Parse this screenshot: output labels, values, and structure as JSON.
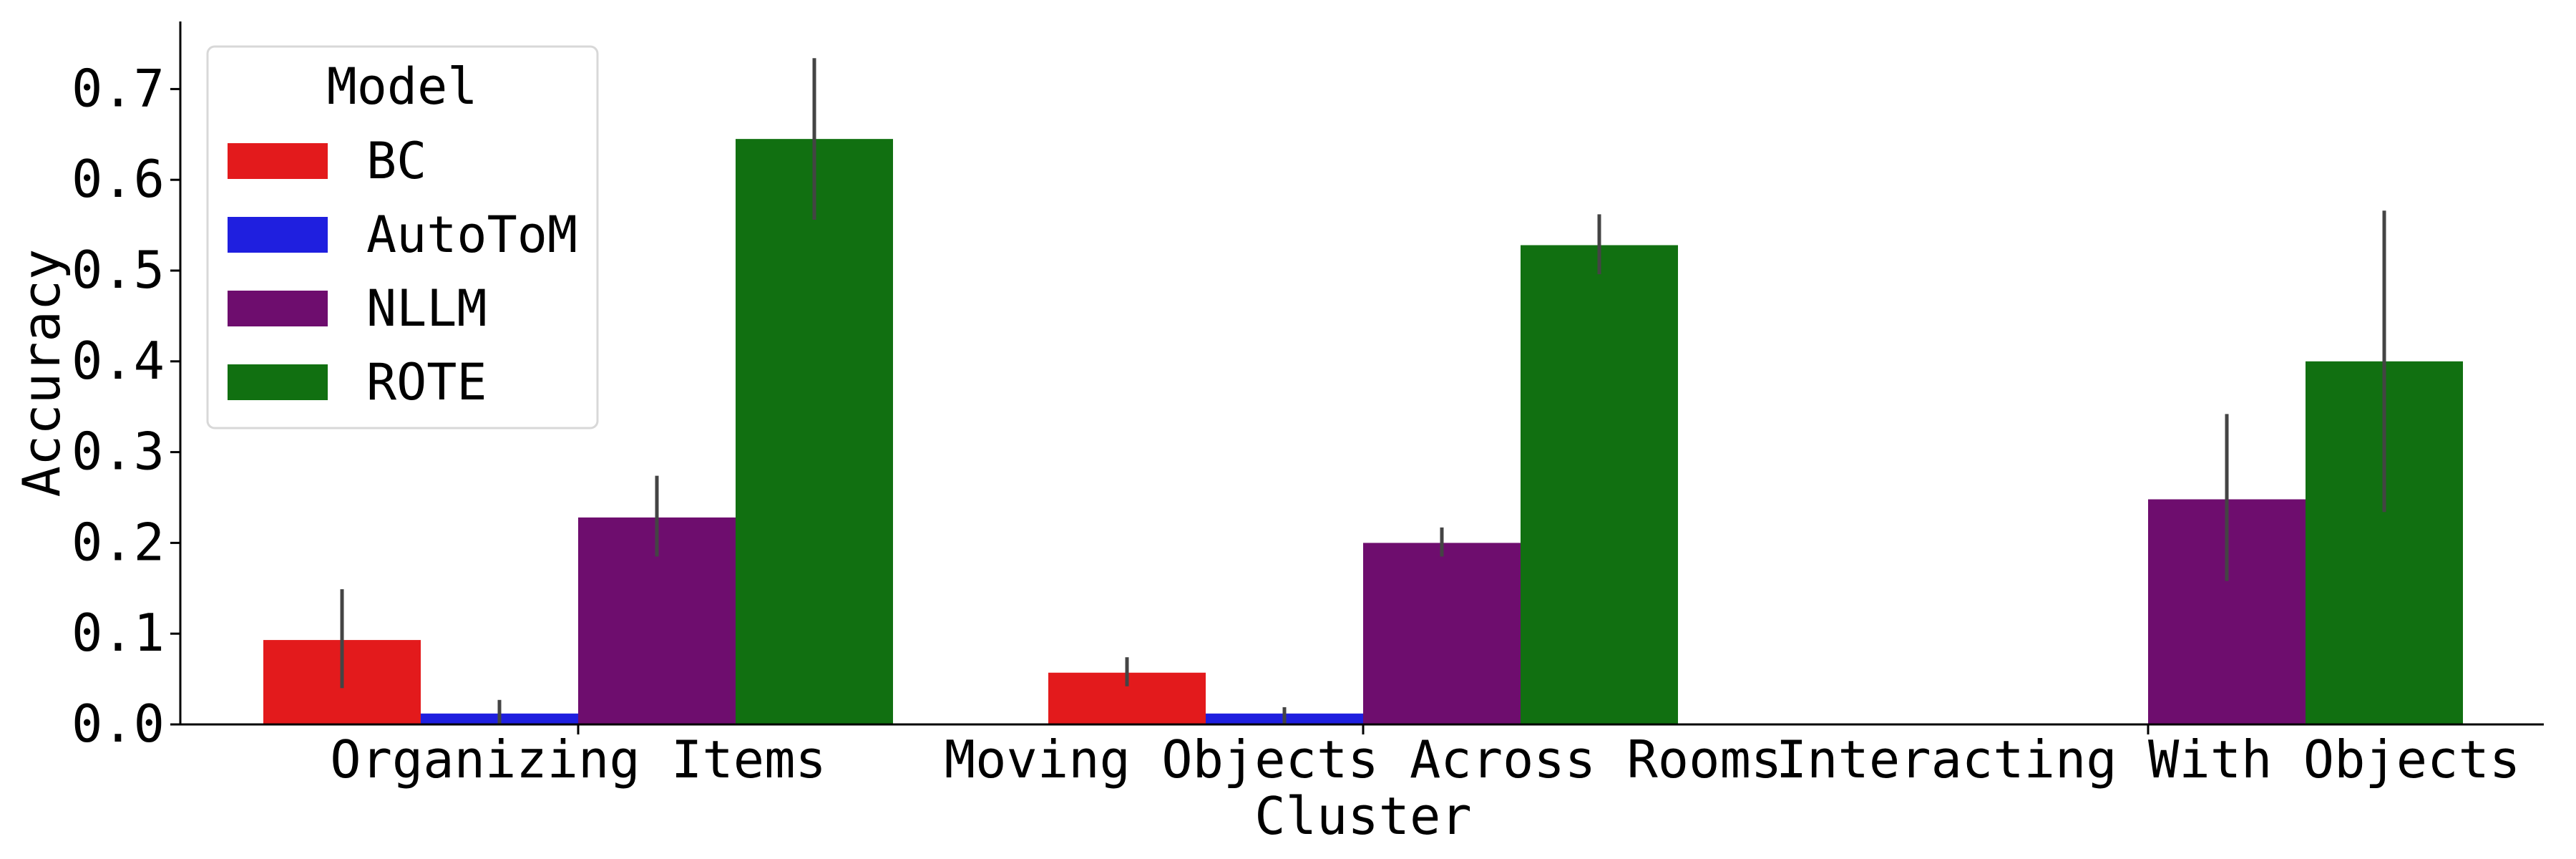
{
  "chart_data": {
    "type": "bar",
    "title": "",
    "xlabel": "Cluster",
    "ylabel": "Accuracy",
    "ylim": [
      0,
      0.77
    ],
    "yticks": [
      0.0,
      0.1,
      0.2,
      0.3,
      0.4,
      0.5,
      0.6,
      0.7
    ],
    "ytick_labels": [
      "0.0",
      "0.1",
      "0.2",
      "0.3",
      "0.4",
      "0.5",
      "0.6",
      "0.7"
    ],
    "grid": false,
    "legend": {
      "title": "Model",
      "placement": "top-left"
    },
    "categories": [
      "Organizing Items",
      "Moving Objects Across Rooms",
      "Interacting With Objects"
    ],
    "series": [
      {
        "name": "BC",
        "color": "#e31a1c",
        "values": [
          0.093,
          0.057,
          0.0
        ],
        "err_low": [
          0.04,
          0.042,
          0.0
        ],
        "err_high": [
          0.149,
          0.074,
          0.0
        ]
      },
      {
        "name": "AutoToM",
        "color": "#1f1fdf",
        "values": [
          0.012,
          0.012,
          0.0
        ],
        "err_low": [
          0.0,
          0.0,
          0.0
        ],
        "err_high": [
          0.027,
          0.019,
          0.0
        ]
      },
      {
        "name": "NLLM",
        "color": "#6e0d6e",
        "values": [
          0.228,
          0.2,
          0.248
        ],
        "err_low": [
          0.185,
          0.185,
          0.158
        ],
        "err_high": [
          0.274,
          0.217,
          0.342
        ]
      },
      {
        "name": "ROTE",
        "color": "#117011",
        "values": [
          0.645,
          0.528,
          0.4
        ],
        "err_low": [
          0.556,
          0.496,
          0.234
        ],
        "err_high": [
          0.734,
          0.562,
          0.566
        ]
      }
    ]
  }
}
